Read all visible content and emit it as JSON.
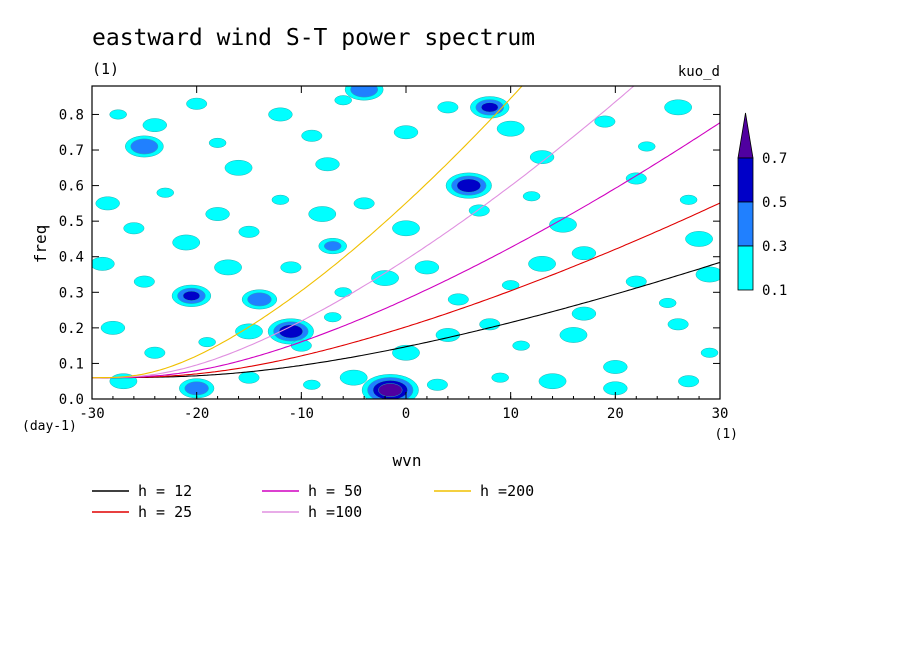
{
  "chart_data": {
    "type": "heatmap",
    "title": "eastward wind S-T power spectrum",
    "subtitle_left": "(1)",
    "subtitle_right": "kuo_d",
    "xlabel": "wvn",
    "ylabel": "freq",
    "x_unit": "(1)",
    "y_unit": "(day-1)",
    "xlim": [
      -30,
      30
    ],
    "ylim": [
      0,
      0.88
    ],
    "x_ticks": [
      -30,
      -20,
      -10,
      0,
      10,
      20,
      30
    ],
    "x_tick_labels": [
      "-30",
      "-20",
      "-10",
      "0",
      "10",
      "20",
      "30"
    ],
    "y_ticks": [
      0,
      0.1,
      0.2,
      0.3,
      0.4,
      0.5,
      0.6,
      0.7,
      0.8
    ],
    "y_tick_labels": [
      "0.0",
      "0.1",
      "0.2",
      "0.3",
      "0.4",
      "0.5",
      "0.6",
      "0.7",
      "0.8"
    ],
    "contour_levels": [
      0.1,
      0.3,
      0.5,
      0.7
    ],
    "contour_level_labels": [
      "0.1",
      "0.3",
      "0.5",
      "0.7"
    ],
    "contour_colors": [
      "#00ffff",
      "#2080ff",
      "#0000c8",
      "#5000a0"
    ],
    "dispersion_curves": [
      {
        "name": "h = 12",
        "h": 12,
        "color": "#000000"
      },
      {
        "name": "h = 25",
        "h": 25,
        "color": "#e00000"
      },
      {
        "name": "h = 50",
        "h": 50,
        "color": "#d000c0"
      },
      {
        "name": "h =100",
        "h": 100,
        "color": "#e090e0"
      },
      {
        "name": "h =200",
        "h": 200,
        "color": "#f0c000"
      }
    ],
    "spectral_blobs": [
      {
        "x": -27.5,
        "y": 0.8,
        "level": 0.1
      },
      {
        "x": -25,
        "y": 0.71,
        "level": 0.3
      },
      {
        "x": -24,
        "y": 0.77,
        "level": 0.1
      },
      {
        "x": -20,
        "y": 0.83,
        "level": 0.1
      },
      {
        "x": -18,
        "y": 0.72,
        "level": 0.1
      },
      {
        "x": -16,
        "y": 0.65,
        "level": 0.1
      },
      {
        "x": -12,
        "y": 0.8,
        "level": 0.1
      },
      {
        "x": -9,
        "y": 0.74,
        "level": 0.1
      },
      {
        "x": -6,
        "y": 0.84,
        "level": 0.1
      },
      {
        "x": -4,
        "y": 0.87,
        "level": 0.3
      },
      {
        "x": 0,
        "y": 0.75,
        "level": 0.1
      },
      {
        "x": 4,
        "y": 0.82,
        "level": 0.1
      },
      {
        "x": 8,
        "y": 0.82,
        "level": 0.5
      },
      {
        "x": 10,
        "y": 0.76,
        "level": 0.1
      },
      {
        "x": 13,
        "y": 0.68,
        "level": 0.1
      },
      {
        "x": 19,
        "y": 0.78,
        "level": 0.1
      },
      {
        "x": 23,
        "y": 0.71,
        "level": 0.1
      },
      {
        "x": 26,
        "y": 0.82,
        "level": 0.1
      },
      {
        "x": -28.5,
        "y": 0.55,
        "level": 0.1
      },
      {
        "x": -26,
        "y": 0.48,
        "level": 0.1
      },
      {
        "x": -23,
        "y": 0.58,
        "level": 0.1
      },
      {
        "x": -21,
        "y": 0.44,
        "level": 0.1
      },
      {
        "x": -18,
        "y": 0.52,
        "level": 0.1
      },
      {
        "x": -15,
        "y": 0.47,
        "level": 0.1
      },
      {
        "x": -12,
        "y": 0.56,
        "level": 0.1
      },
      {
        "x": -8,
        "y": 0.52,
        "level": 0.1
      },
      {
        "x": -7.5,
        "y": 0.66,
        "level": 0.1
      },
      {
        "x": -4,
        "y": 0.55,
        "level": 0.1
      },
      {
        "x": -7,
        "y": 0.43,
        "level": 0.3
      },
      {
        "x": 0,
        "y": 0.48,
        "level": 0.1
      },
      {
        "x": 6,
        "y": 0.6,
        "level": 0.5
      },
      {
        "x": 7,
        "y": 0.53,
        "level": 0.1
      },
      {
        "x": 12,
        "y": 0.57,
        "level": 0.1
      },
      {
        "x": 15,
        "y": 0.49,
        "level": 0.1
      },
      {
        "x": 17,
        "y": 0.41,
        "level": 0.1
      },
      {
        "x": 22,
        "y": 0.62,
        "level": 0.1
      },
      {
        "x": 27,
        "y": 0.56,
        "level": 0.1
      },
      {
        "x": 28,
        "y": 0.45,
        "level": 0.1
      },
      {
        "x": -29,
        "y": 0.38,
        "level": 0.1
      },
      {
        "x": -25,
        "y": 0.33,
        "level": 0.1
      },
      {
        "x": -20.5,
        "y": 0.29,
        "level": 0.5
      },
      {
        "x": -17,
        "y": 0.37,
        "level": 0.1
      },
      {
        "x": -14,
        "y": 0.28,
        "level": 0.3
      },
      {
        "x": -11,
        "y": 0.37,
        "level": 0.1
      },
      {
        "x": -6,
        "y": 0.3,
        "level": 0.1
      },
      {
        "x": -2,
        "y": 0.34,
        "level": 0.1
      },
      {
        "x": 2,
        "y": 0.37,
        "level": 0.1
      },
      {
        "x": 5,
        "y": 0.28,
        "level": 0.1
      },
      {
        "x": 10,
        "y": 0.32,
        "level": 0.1
      },
      {
        "x": 13,
        "y": 0.38,
        "level": 0.1
      },
      {
        "x": 17,
        "y": 0.24,
        "level": 0.1
      },
      {
        "x": 22,
        "y": 0.33,
        "level": 0.1
      },
      {
        "x": 25,
        "y": 0.27,
        "level": 0.1
      },
      {
        "x": 29,
        "y": 0.35,
        "level": 0.1
      },
      {
        "x": -28,
        "y": 0.2,
        "level": 0.1
      },
      {
        "x": -24,
        "y": 0.13,
        "level": 0.1
      },
      {
        "x": -19,
        "y": 0.16,
        "level": 0.1
      },
      {
        "x": -15,
        "y": 0.19,
        "level": 0.1
      },
      {
        "x": -11,
        "y": 0.19,
        "level": 0.5
      },
      {
        "x": -10,
        "y": 0.15,
        "level": 0.1
      },
      {
        "x": -7,
        "y": 0.23,
        "level": 0.1
      },
      {
        "x": 0,
        "y": 0.13,
        "level": 0.1
      },
      {
        "x": 4,
        "y": 0.18,
        "level": 0.1
      },
      {
        "x": 8,
        "y": 0.21,
        "level": 0.1
      },
      {
        "x": 11,
        "y": 0.15,
        "level": 0.1
      },
      {
        "x": 16,
        "y": 0.18,
        "level": 0.1
      },
      {
        "x": 20,
        "y": 0.09,
        "level": 0.1
      },
      {
        "x": 26,
        "y": 0.21,
        "level": 0.1
      },
      {
        "x": 29,
        "y": 0.13,
        "level": 0.1
      },
      {
        "x": -27,
        "y": 0.05,
        "level": 0.1
      },
      {
        "x": -20,
        "y": 0.03,
        "level": 0.3
      },
      {
        "x": -15,
        "y": 0.06,
        "level": 0.1
      },
      {
        "x": -9,
        "y": 0.04,
        "level": 0.1
      },
      {
        "x": -5,
        "y": 0.06,
        "level": 0.1
      },
      {
        "x": -1.5,
        "y": 0.025,
        "level": 0.7
      },
      {
        "x": 3,
        "y": 0.04,
        "level": 0.1
      },
      {
        "x": 9,
        "y": 0.06,
        "level": 0.1
      },
      {
        "x": 14,
        "y": 0.05,
        "level": 0.1
      },
      {
        "x": 20,
        "y": 0.03,
        "level": 0.1
      },
      {
        "x": 27,
        "y": 0.05,
        "level": 0.1
      }
    ]
  }
}
